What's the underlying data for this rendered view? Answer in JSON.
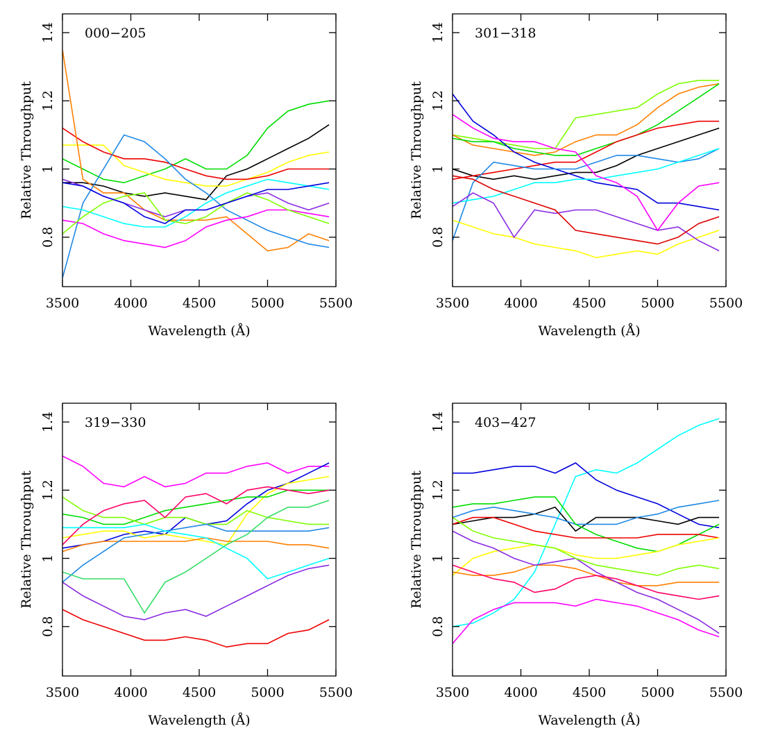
{
  "chart_data": [
    {
      "type": "line",
      "title": "000−205",
      "x_label": "Wavelength (Å)",
      "y_label": "Relative Throughput",
      "xlim": [
        3500,
        5500
      ],
      "ylim": [
        0.655,
        1.455
      ],
      "xticks": [
        3500,
        4000,
        4500,
        5000,
        5500
      ],
      "yticks": [
        0.8,
        1,
        1.2,
        1.4
      ],
      "x": [
        3500,
        3650,
        3800,
        3950,
        4100,
        4250,
        4400,
        4550,
        4700,
        4850,
        5000,
        5150,
        5300,
        5450
      ],
      "series": [
        {
          "color": "#00dd00",
          "values": [
            1.03,
            1.0,
            0.97,
            0.96,
            0.98,
            1.0,
            1.03,
            1.0,
            1.0,
            1.04,
            1.12,
            1.17,
            1.19,
            1.2
          ]
        },
        {
          "color": "#000000",
          "values": [
            0.96,
            0.96,
            0.95,
            0.93,
            0.92,
            0.93,
            0.92,
            0.91,
            0.98,
            1.0,
            1.03,
            1.06,
            1.09,
            1.13
          ]
        },
        {
          "color": "#ffff00",
          "values": [
            1.07,
            1.07,
            1.07,
            1.01,
            0.99,
            0.97,
            0.96,
            0.95,
            0.95,
            0.97,
            0.99,
            1.02,
            1.04,
            1.05
          ]
        },
        {
          "color": "#ee0000",
          "values": [
            1.12,
            1.08,
            1.05,
            1.03,
            1.03,
            1.02,
            1.0,
            0.98,
            0.97,
            0.97,
            0.98,
            1.0,
            1.0,
            1.0
          ]
        },
        {
          "color": "#ff7f00",
          "values": [
            1.35,
            0.97,
            0.93,
            0.93,
            0.88,
            0.85,
            0.85,
            0.85,
            0.86,
            0.81,
            0.76,
            0.77,
            0.81,
            0.79
          ]
        },
        {
          "color": "#1e88e5",
          "values": [
            0.68,
            0.9,
            1.0,
            1.1,
            1.08,
            1.03,
            0.97,
            0.93,
            0.88,
            0.85,
            0.82,
            0.8,
            0.78,
            0.77
          ]
        },
        {
          "color": "#00ffff",
          "values": [
            0.89,
            0.88,
            0.86,
            0.84,
            0.83,
            0.83,
            0.86,
            0.9,
            0.93,
            0.95,
            0.97,
            0.96,
            0.95,
            0.94
          ]
        },
        {
          "color": "#ff00ff",
          "values": [
            0.85,
            0.84,
            0.81,
            0.79,
            0.78,
            0.77,
            0.79,
            0.83,
            0.85,
            0.86,
            0.88,
            0.88,
            0.87,
            0.86
          ]
        },
        {
          "color": "#8a2be2",
          "values": [
            0.97,
            0.95,
            0.92,
            0.9,
            0.88,
            0.86,
            0.88,
            0.88,
            0.9,
            0.92,
            0.93,
            0.9,
            0.88,
            0.9
          ]
        },
        {
          "color": "#7fff00",
          "values": [
            0.81,
            0.86,
            0.9,
            0.92,
            0.93,
            0.85,
            0.84,
            0.86,
            0.9,
            0.93,
            0.91,
            0.88,
            0.86,
            0.84
          ]
        },
        {
          "color": "#0000dd",
          "values": [
            0.96,
            0.95,
            0.92,
            0.9,
            0.86,
            0.84,
            0.88,
            0.88,
            0.9,
            0.92,
            0.94,
            0.94,
            0.95,
            0.96
          ]
        }
      ]
    },
    {
      "type": "line",
      "title": "301−318",
      "x_label": "Wavelength (Å)",
      "y_label": "Relative Throughput",
      "xlim": [
        3500,
        5500
      ],
      "ylim": [
        0.655,
        1.455
      ],
      "xticks": [
        3500,
        4000,
        4500,
        5000,
        5500
      ],
      "yticks": [
        0.8,
        1,
        1.2,
        1.4
      ],
      "x": [
        3500,
        3650,
        3800,
        3950,
        4100,
        4250,
        4400,
        4550,
        4700,
        4850,
        5000,
        5150,
        5300,
        5450
      ],
      "series": [
        {
          "color": "#7fff00",
          "values": [
            1.1,
            1.09,
            1.08,
            1.07,
            1.06,
            1.06,
            1.15,
            1.16,
            1.17,
            1.18,
            1.22,
            1.25,
            1.26,
            1.26
          ]
        },
        {
          "color": "#ff7f00",
          "values": [
            1.1,
            1.07,
            1.06,
            1.05,
            1.04,
            1.05,
            1.08,
            1.1,
            1.1,
            1.13,
            1.18,
            1.22,
            1.24,
            1.25
          ]
        },
        {
          "color": "#00dd00",
          "values": [
            1.09,
            1.08,
            1.08,
            1.06,
            1.05,
            1.04,
            1.04,
            1.06,
            1.08,
            1.1,
            1.13,
            1.17,
            1.21,
            1.25
          ]
        },
        {
          "color": "#000000",
          "values": [
            1.0,
            0.98,
            0.97,
            0.98,
            0.97,
            0.98,
            0.99,
            0.99,
            1.01,
            1.04,
            1.06,
            1.08,
            1.1,
            1.12
          ]
        },
        {
          "color": "#ee0000",
          "values": [
            0.97,
            0.98,
            0.99,
            1.0,
            1.01,
            1.02,
            1.02,
            1.05,
            1.08,
            1.1,
            1.12,
            1.13,
            1.14,
            1.14
          ]
        },
        {
          "color": "#0000dd",
          "values": [
            1.22,
            1.14,
            1.1,
            1.05,
            1.02,
            1.0,
            0.98,
            0.96,
            0.95,
            0.94,
            0.9,
            0.9,
            0.89,
            0.88
          ]
        },
        {
          "color": "#1e88e5",
          "values": [
            0.79,
            0.96,
            1.02,
            1.01,
            1.0,
            1.0,
            1.0,
            1.02,
            1.04,
            1.04,
            1.03,
            1.02,
            1.03,
            1.06
          ]
        },
        {
          "color": "#00ffff",
          "values": [
            0.9,
            0.91,
            0.92,
            0.94,
            0.96,
            0.96,
            0.97,
            0.97,
            0.98,
            0.99,
            1.0,
            1.02,
            1.04,
            1.06
          ]
        },
        {
          "color": "#ffff00",
          "values": [
            0.85,
            0.83,
            0.81,
            0.8,
            0.78,
            0.77,
            0.76,
            0.74,
            0.75,
            0.76,
            0.75,
            0.78,
            0.8,
            0.82
          ]
        },
        {
          "color": "#8a2be2",
          "values": [
            0.89,
            0.93,
            0.9,
            0.8,
            0.88,
            0.87,
            0.88,
            0.88,
            0.86,
            0.84,
            0.82,
            0.83,
            0.79,
            0.76
          ]
        },
        {
          "color": "#dd0000",
          "values": [
            0.98,
            0.97,
            0.94,
            0.92,
            0.9,
            0.88,
            0.82,
            0.81,
            0.8,
            0.79,
            0.78,
            0.8,
            0.84,
            0.86
          ]
        },
        {
          "color": "#ff00ff",
          "values": [
            1.16,
            1.12,
            1.09,
            1.08,
            1.08,
            1.06,
            1.05,
            0.98,
            0.96,
            0.92,
            0.82,
            0.9,
            0.95,
            0.96
          ]
        }
      ]
    },
    {
      "type": "line",
      "title": "319−330",
      "x_label": "Wavelength (Å)",
      "y_label": "Relative Throughput",
      "xlim": [
        3500,
        5500
      ],
      "ylim": [
        0.655,
        1.455
      ],
      "xticks": [
        3500,
        4000,
        4500,
        5000,
        5500
      ],
      "yticks": [
        0.8,
        1,
        1.2,
        1.4
      ],
      "x": [
        3500,
        3650,
        3800,
        3950,
        4100,
        4250,
        4400,
        4550,
        4700,
        4850,
        5000,
        5150,
        5300,
        5450
      ],
      "series": [
        {
          "color": "#ff00ff",
          "values": [
            1.3,
            1.27,
            1.22,
            1.21,
            1.24,
            1.21,
            1.22,
            1.25,
            1.25,
            1.27,
            1.28,
            1.25,
            1.27,
            1.27
          ]
        },
        {
          "color": "#0000dd",
          "values": [
            1.03,
            1.04,
            1.05,
            1.07,
            1.08,
            1.07,
            1.12,
            1.1,
            1.11,
            1.16,
            1.2,
            1.22,
            1.25,
            1.28
          ]
        },
        {
          "color": "#ffff00",
          "values": [
            1.06,
            1.07,
            1.08,
            1.08,
            1.06,
            1.07,
            1.06,
            1.05,
            1.04,
            1.13,
            1.19,
            1.22,
            1.23,
            1.24
          ]
        },
        {
          "color": "#00dd00",
          "values": [
            1.13,
            1.12,
            1.1,
            1.1,
            1.12,
            1.14,
            1.15,
            1.16,
            1.17,
            1.18,
            1.18,
            1.2,
            1.2,
            1.2
          ]
        },
        {
          "color": "#7fff00",
          "values": [
            1.18,
            1.14,
            1.12,
            1.12,
            1.1,
            1.12,
            1.12,
            1.1,
            1.1,
            1.14,
            1.12,
            1.11,
            1.1,
            1.1
          ]
        },
        {
          "color": "#ff0066",
          "values": [
            1.04,
            1.1,
            1.14,
            1.16,
            1.17,
            1.12,
            1.18,
            1.19,
            1.16,
            1.2,
            1.21,
            1.2,
            1.19,
            1.2
          ]
        },
        {
          "color": "#ff7f00",
          "values": [
            1.02,
            1.04,
            1.05,
            1.05,
            1.05,
            1.05,
            1.05,
            1.06,
            1.05,
            1.05,
            1.05,
            1.04,
            1.04,
            1.03
          ]
        },
        {
          "color": "#1e88e5",
          "values": [
            0.93,
            0.98,
            1.02,
            1.06,
            1.07,
            1.08,
            1.09,
            1.1,
            1.08,
            1.08,
            1.08,
            1.08,
            1.08,
            1.09
          ]
        },
        {
          "color": "#00ffff",
          "values": [
            1.09,
            1.09,
            1.09,
            1.09,
            1.1,
            1.08,
            1.07,
            1.06,
            1.03,
            1.0,
            0.94,
            0.96,
            0.98,
            1.0
          ]
        },
        {
          "color": "#33dd66",
          "values": [
            0.96,
            0.94,
            0.94,
            0.94,
            0.84,
            0.93,
            0.96,
            1.0,
            1.04,
            1.07,
            1.12,
            1.15,
            1.15,
            1.17
          ]
        },
        {
          "color": "#8a2be2",
          "values": [
            0.93,
            0.89,
            0.86,
            0.83,
            0.82,
            0.84,
            0.85,
            0.83,
            0.86,
            0.89,
            0.92,
            0.95,
            0.97,
            0.98
          ]
        },
        {
          "color": "#ee0000",
          "values": [
            0.85,
            0.82,
            0.8,
            0.78,
            0.76,
            0.76,
            0.77,
            0.76,
            0.74,
            0.75,
            0.75,
            0.78,
            0.79,
            0.82
          ]
        }
      ]
    },
    {
      "type": "line",
      "title": "403−427",
      "x_label": "Wavelength (Å)",
      "y_label": "Relative Throughput",
      "xlim": [
        3500,
        5500
      ],
      "ylim": [
        0.655,
        1.455
      ],
      "xticks": [
        3500,
        4000,
        4500,
        5000,
        5500
      ],
      "yticks": [
        0.8,
        1,
        1.2,
        1.4
      ],
      "x": [
        3500,
        3650,
        3800,
        3950,
        4100,
        4250,
        4400,
        4550,
        4700,
        4850,
        5000,
        5150,
        5300,
        5450
      ],
      "series": [
        {
          "color": "#00ffff",
          "values": [
            0.8,
            0.81,
            0.84,
            0.88,
            0.96,
            1.1,
            1.24,
            1.26,
            1.25,
            1.28,
            1.32,
            1.36,
            1.39,
            1.41
          ]
        },
        {
          "color": "#0000dd",
          "values": [
            1.25,
            1.25,
            1.26,
            1.27,
            1.27,
            1.25,
            1.28,
            1.23,
            1.2,
            1.18,
            1.16,
            1.13,
            1.1,
            1.09
          ]
        },
        {
          "color": "#000000",
          "values": [
            1.1,
            1.11,
            1.12,
            1.12,
            1.13,
            1.15,
            1.08,
            1.12,
            1.12,
            1.12,
            1.11,
            1.1,
            1.12,
            1.12
          ]
        },
        {
          "color": "#1e88e5",
          "values": [
            1.12,
            1.14,
            1.15,
            1.14,
            1.13,
            1.12,
            1.1,
            1.1,
            1.1,
            1.12,
            1.13,
            1.15,
            1.16,
            1.17
          ]
        },
        {
          "color": "#00dd00",
          "values": [
            1.15,
            1.16,
            1.16,
            1.17,
            1.18,
            1.18,
            1.1,
            1.07,
            1.05,
            1.03,
            1.02,
            1.04,
            1.07,
            1.1
          ]
        },
        {
          "color": "#ee0000",
          "values": [
            1.1,
            1.12,
            1.12,
            1.1,
            1.08,
            1.07,
            1.06,
            1.06,
            1.06,
            1.06,
            1.07,
            1.07,
            1.07,
            1.06
          ]
        },
        {
          "color": "#ffff00",
          "values": [
            0.95,
            1.0,
            1.02,
            1.03,
            1.04,
            1.03,
            1.01,
            1.0,
            1.0,
            1.01,
            1.02,
            1.04,
            1.05,
            1.06
          ]
        },
        {
          "color": "#ff7f00",
          "values": [
            0.96,
            0.95,
            0.95,
            0.96,
            0.98,
            0.98,
            0.97,
            0.95,
            0.93,
            0.92,
            0.92,
            0.93,
            0.93,
            0.93
          ]
        },
        {
          "color": "#ff00ff",
          "values": [
            0.75,
            0.82,
            0.85,
            0.87,
            0.87,
            0.87,
            0.86,
            0.88,
            0.87,
            0.86,
            0.84,
            0.82,
            0.79,
            0.77
          ]
        },
        {
          "color": "#8a2be2",
          "values": [
            1.08,
            1.05,
            1.03,
            1.0,
            0.98,
            0.99,
            1.0,
            0.96,
            0.93,
            0.9,
            0.88,
            0.85,
            0.82,
            0.78
          ]
        },
        {
          "color": "#7fff00",
          "values": [
            1.12,
            1.08,
            1.06,
            1.05,
            1.04,
            1.03,
            1.0,
            0.98,
            0.97,
            0.96,
            0.95,
            0.97,
            0.98,
            0.97
          ]
        },
        {
          "color": "#ff0066",
          "values": [
            0.98,
            0.96,
            0.94,
            0.93,
            0.9,
            0.91,
            0.94,
            0.95,
            0.94,
            0.92,
            0.9,
            0.89,
            0.88,
            0.89
          ]
        }
      ]
    }
  ]
}
